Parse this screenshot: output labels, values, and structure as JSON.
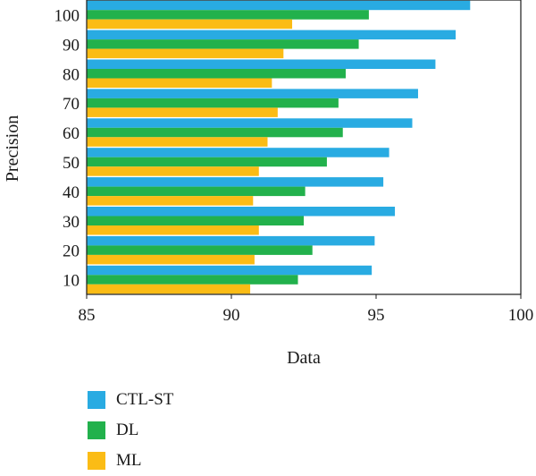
{
  "chart_data": {
    "type": "bar",
    "orientation": "horizontal",
    "title": "",
    "xlabel": "Data",
    "ylabel": "Precision",
    "xlim": [
      85,
      100
    ],
    "x_ticks": [
      "85",
      "90",
      "95",
      "100"
    ],
    "categories": [
      "10",
      "20",
      "30",
      "40",
      "50",
      "60",
      "70",
      "80",
      "90",
      "100"
    ],
    "series": [
      {
        "name": "CTL-ST",
        "color": "#29abe2",
        "values": [
          94.85,
          94.95,
          95.65,
          95.25,
          95.45,
          96.25,
          96.45,
          97.05,
          97.75,
          98.25
        ]
      },
      {
        "name": "DL",
        "color": "#22b14c",
        "values": [
          92.3,
          92.8,
          92.5,
          92.55,
          93.3,
          93.85,
          93.7,
          93.95,
          94.4,
          94.75
        ]
      },
      {
        "name": "ML",
        "color": "#fbbc15",
        "values": [
          90.65,
          90.8,
          90.95,
          90.75,
          90.95,
          91.25,
          91.6,
          91.4,
          91.8,
          92.1
        ]
      }
    ],
    "grid": false,
    "legend_position": "bottom-left"
  }
}
